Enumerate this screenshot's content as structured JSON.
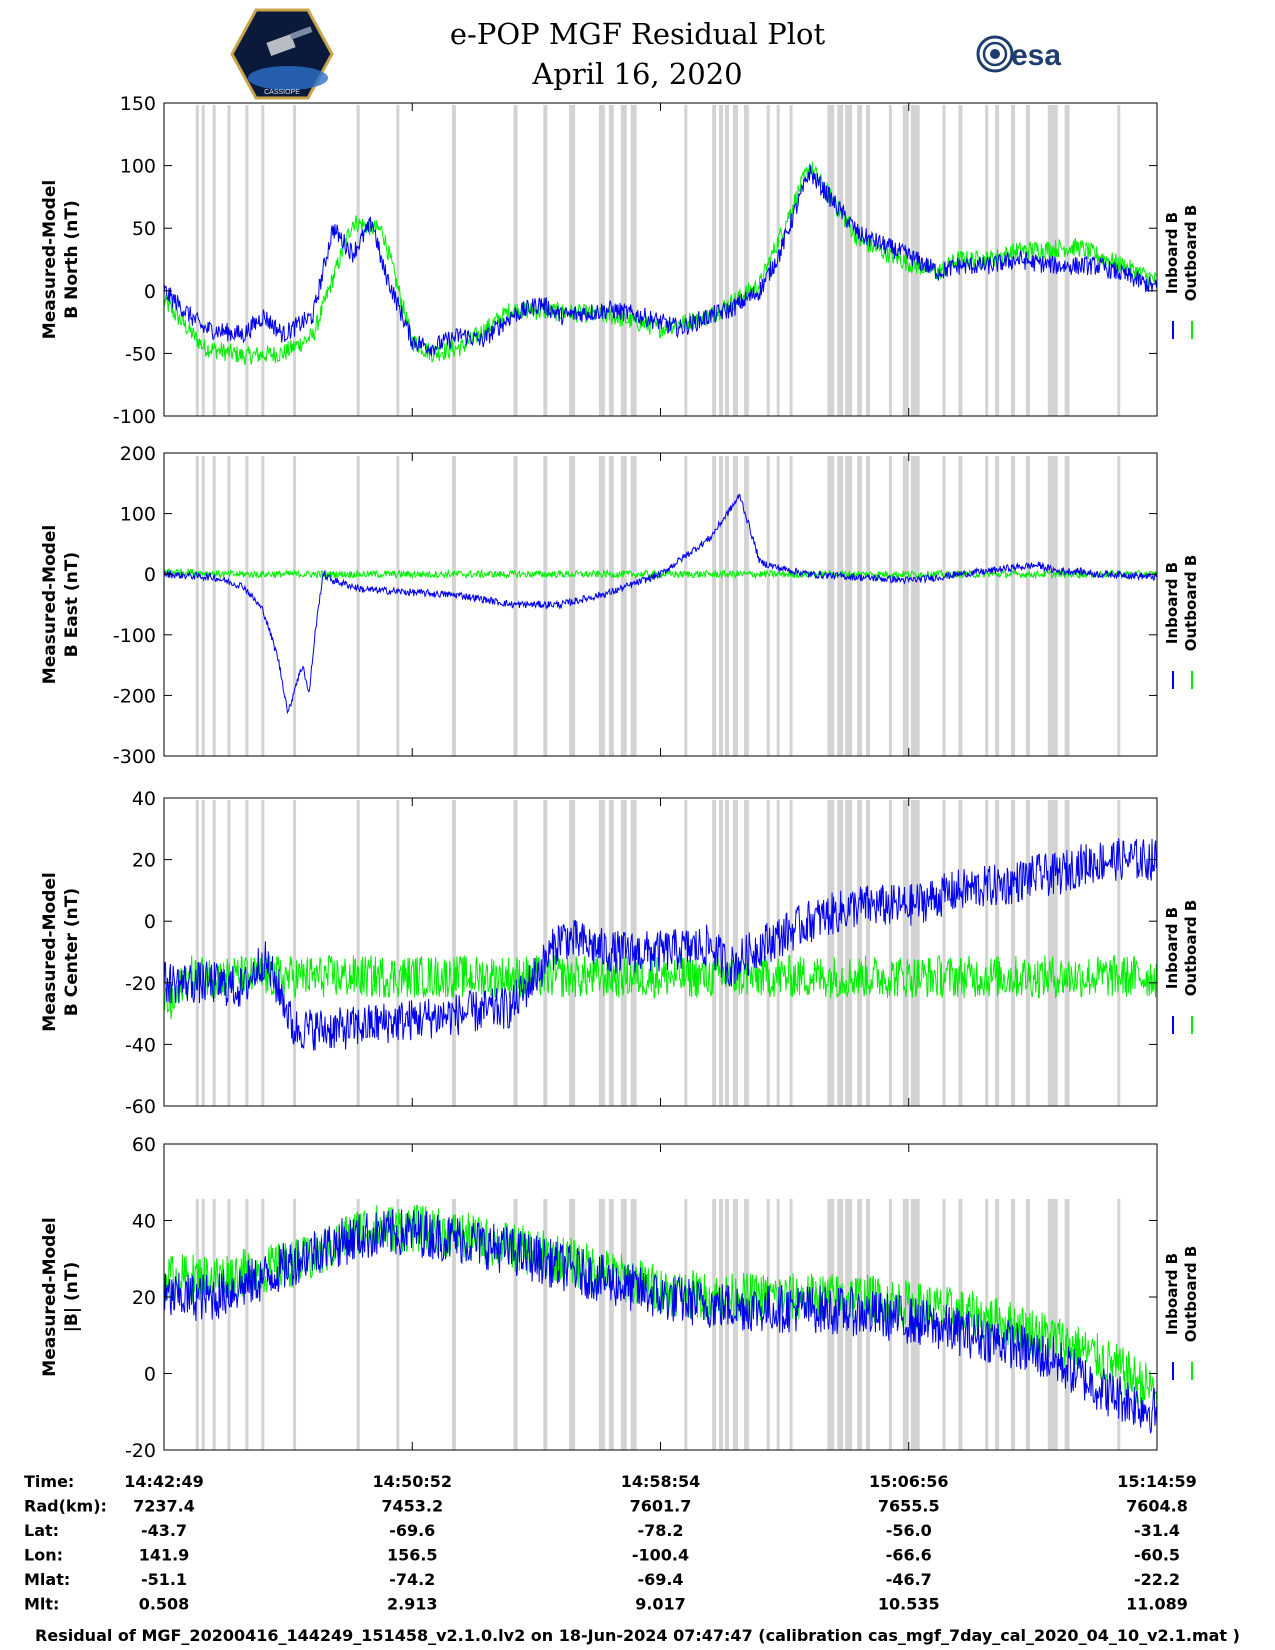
{
  "header": {
    "title": "e-POP MGF Residual Plot",
    "date": "April 16, 2020",
    "logo_left": "CASSIOPE",
    "logo_right": "esa"
  },
  "chart_data": [
    {
      "type": "line",
      "ylabel": [
        "Measured-Model",
        "B North (nT)"
      ],
      "ylim": [
        -100,
        150
      ],
      "yticks": [
        -100,
        -50,
        0,
        50,
        100,
        150
      ],
      "legend": [
        "Inboard B",
        "Outboard B"
      ],
      "series": [
        {
          "name": "Outboard B",
          "color": "#00ee00",
          "t": [
            0,
            4,
            8,
            12,
            15,
            19,
            22,
            25,
            27,
            30,
            35,
            40,
            45,
            50,
            55,
            60,
            65,
            70,
            75,
            78,
            80,
            83,
            86,
            88,
            92,
            96,
            100
          ],
          "y": [
            -8,
            -45,
            -52,
            -50,
            -36,
            55,
            48,
            -40,
            -50,
            -45,
            -15,
            -17,
            -20,
            -30,
            -20,
            5,
            100,
            40,
            22,
            15,
            25,
            25,
            32,
            33,
            35,
            22,
            8
          ]
        },
        {
          "name": "Inboard B",
          "color": "#0000ee",
          "t": [
            0,
            4,
            8,
            10,
            12,
            15,
            17,
            19,
            21,
            22,
            24,
            25,
            27,
            30,
            32,
            35,
            38,
            40,
            45,
            48,
            50,
            52,
            55,
            57,
            60,
            62,
            65,
            70,
            75,
            78,
            80,
            83,
            86,
            88,
            90,
            92,
            94,
            96,
            100
          ],
          "y": [
            0,
            -30,
            -35,
            -20,
            -35,
            -20,
            50,
            30,
            55,
            20,
            -20,
            -40,
            -45,
            -35,
            -40,
            -20,
            -10,
            -20,
            -15,
            -20,
            -25,
            -30,
            -20,
            -15,
            0,
            30,
            95,
            45,
            28,
            15,
            20,
            20,
            25,
            22,
            20,
            20,
            20,
            15,
            2
          ]
        }
      ]
    },
    {
      "type": "line",
      "ylabel": [
        "Measured-Model",
        "B East (nT)"
      ],
      "ylim": [
        -300,
        200
      ],
      "yticks": [
        -300,
        -200,
        -100,
        0,
        100,
        200
      ],
      "legend": [
        "Inboard B",
        "Outboard B"
      ],
      "series": [
        {
          "name": "Outboard B",
          "color": "#00ee00",
          "t": [
            0,
            3,
            6
          ],
          "y": [
            5,
            3,
            0
          ]
        },
        {
          "name": "Inboard B",
          "color": "#0000ee",
          "t": [
            0,
            5,
            8,
            10,
            11.5,
            12.5,
            13.3,
            14,
            14.6,
            15.2,
            16,
            17,
            20,
            25,
            30,
            35,
            40,
            45,
            50,
            55,
            58,
            60,
            62,
            65,
            70,
            75,
            78,
            80,
            83,
            85,
            88,
            90,
            92,
            94,
            96,
            100
          ],
          "y": [
            0,
            -5,
            -20,
            -60,
            -140,
            -230,
            -180,
            -150,
            -200,
            -100,
            0,
            -10,
            -25,
            -30,
            -35,
            -50,
            -50,
            -30,
            0,
            60,
            130,
            20,
            10,
            0,
            -5,
            -10,
            -5,
            0,
            5,
            10,
            15,
            5,
            5,
            0,
            0,
            -5
          ]
        }
      ]
    },
    {
      "type": "line",
      "ylabel": [
        "Measured-Model",
        "B Center (nT)"
      ],
      "ylim": [
        -60,
        40
      ],
      "yticks": [
        -60,
        -40,
        -20,
        0,
        20,
        40
      ],
      "legend": [
        "Inboard B",
        "Outboard B"
      ],
      "series": [
        {
          "name": "Outboard B",
          "color": "#00ee00",
          "t": [
            0,
            1,
            2
          ],
          "y": [
            -25,
            -28,
            -18
          ]
        },
        {
          "name": "Inboard B",
          "color": "#0000ee",
          "t": [
            0,
            5,
            8,
            10,
            12,
            13,
            15,
            18,
            22,
            25,
            30,
            35,
            38,
            40,
            45,
            50,
            55,
            57,
            60,
            62,
            65,
            70,
            75,
            80,
            85,
            88,
            90,
            92,
            95,
            100
          ],
          "y": [
            -20,
            -20,
            -22,
            -12,
            -25,
            -35,
            -35,
            -35,
            -33,
            -32,
            -30,
            -28,
            -15,
            -5,
            -10,
            -10,
            -8,
            -15,
            -8,
            -5,
            0,
            5,
            5,
            10,
            12,
            15,
            15,
            18,
            20,
            20
          ]
        }
      ]
    },
    {
      "type": "line",
      "ylabel": [
        "Measured-Model",
        "|B| (nT)"
      ],
      "ylim": [
        -20,
        60
      ],
      "yticks": [
        -20,
        0,
        20,
        40,
        60
      ],
      "legend": [
        "Inboard B",
        "Outboard B"
      ],
      "series": [
        {
          "name": "Outboard B",
          "color": "#00ee00",
          "t": [
            0,
            5,
            10,
            15,
            20,
            25,
            30,
            35,
            40,
            45,
            50,
            55,
            60,
            65,
            70,
            75,
            80,
            85,
            90,
            95,
            100
          ],
          "y": [
            25,
            25,
            27,
            30,
            38,
            38,
            36,
            33,
            30,
            26,
            22,
            20,
            20,
            20,
            20,
            18,
            16,
            13,
            9,
            3,
            -5
          ]
        },
        {
          "name": "Inboard B",
          "color": "#0000ee",
          "t": [
            0,
            5,
            10,
            15,
            20,
            25,
            30,
            35,
            40,
            45,
            50,
            55,
            60,
            65,
            70,
            75,
            80,
            85,
            90,
            95,
            100
          ],
          "y": [
            20,
            20,
            25,
            32,
            36,
            37,
            35,
            32,
            28,
            24,
            20,
            18,
            17,
            17,
            16,
            14,
            11,
            8,
            3,
            -5,
            -10
          ]
        }
      ]
    }
  ],
  "shaded_intervals_pct": [
    [
      3.2,
      3.5
    ],
    [
      3.8,
      4.1
    ],
    [
      4.9,
      5.2
    ],
    [
      6.4,
      6.7
    ],
    [
      8.2,
      8.5
    ],
    [
      9.8,
      10.1
    ],
    [
      13.0,
      13.3
    ],
    [
      19.4,
      19.7
    ],
    [
      23.4,
      23.7
    ],
    [
      29.0,
      29.4
    ],
    [
      35.2,
      35.6
    ],
    [
      38.2,
      38.6
    ],
    [
      40.8,
      41.4
    ],
    [
      43.8,
      44.4
    ],
    [
      44.8,
      45.3
    ],
    [
      46.0,
      46.6
    ],
    [
      47.0,
      47.6
    ],
    [
      52.4,
      52.7
    ],
    [
      55.2,
      55.6
    ],
    [
      55.9,
      56.3
    ],
    [
      56.5,
      56.9
    ],
    [
      57.3,
      57.8
    ],
    [
      58.4,
      58.9
    ],
    [
      60.7,
      61.0
    ],
    [
      61.7,
      62.0
    ],
    [
      63.0,
      63.3
    ],
    [
      66.8,
      67.5
    ],
    [
      67.8,
      68.4
    ],
    [
      68.6,
      69.3
    ],
    [
      69.8,
      70.3
    ],
    [
      70.7,
      71.1
    ],
    [
      73.0,
      73.3
    ],
    [
      74.4,
      75.0
    ],
    [
      75.2,
      76.1
    ],
    [
      78.4,
      78.7
    ],
    [
      80.0,
      80.4
    ],
    [
      82.7,
      83.0
    ],
    [
      83.7,
      84.1
    ],
    [
      85.3,
      85.7
    ],
    [
      86.8,
      87.2
    ],
    [
      89.0,
      90.0
    ],
    [
      90.7,
      91.2
    ],
    [
      96.0,
      96.3
    ]
  ],
  "axis_time": {
    "labels": [
      "14:42:49",
      "14:50:52",
      "14:58:54",
      "15:06:56",
      "15:14:59"
    ]
  },
  "info_table": {
    "rows": [
      {
        "label": "Time:",
        "values": [
          "14:42:49",
          "14:50:52",
          "14:58:54",
          "15:06:56",
          "15:14:59"
        ]
      },
      {
        "label": "Rad(km):",
        "values": [
          "7237.4",
          "7453.2",
          "7601.7",
          "7655.5",
          "7604.8"
        ]
      },
      {
        "label": "Lat:",
        "values": [
          "-43.7",
          "-69.6",
          "-78.2",
          "-56.0",
          "-31.4"
        ]
      },
      {
        "label": "Lon:",
        "values": [
          "141.9",
          "156.5",
          "-100.4",
          "-66.6",
          "-60.5"
        ]
      },
      {
        "label": "Mlat:",
        "values": [
          "-51.1",
          "-74.2",
          "-69.4",
          "-46.7",
          "-22.2"
        ]
      },
      {
        "label": "Mlt:",
        "values": [
          "0.508",
          "2.913",
          "9.017",
          "10.535",
          "11.089"
        ]
      }
    ]
  },
  "footer": {
    "caption": "Residual of MGF_20200416_144249_151458_v2.1.0.lv2 on 18-Jun-2024 07:47:47 (calibration cas_mgf_7day_cal_2020_04_10_v2.1.mat )"
  },
  "colors": {
    "inboard": "#0000ee",
    "outboard": "#00ee00",
    "shade": "#d3d3d3"
  }
}
